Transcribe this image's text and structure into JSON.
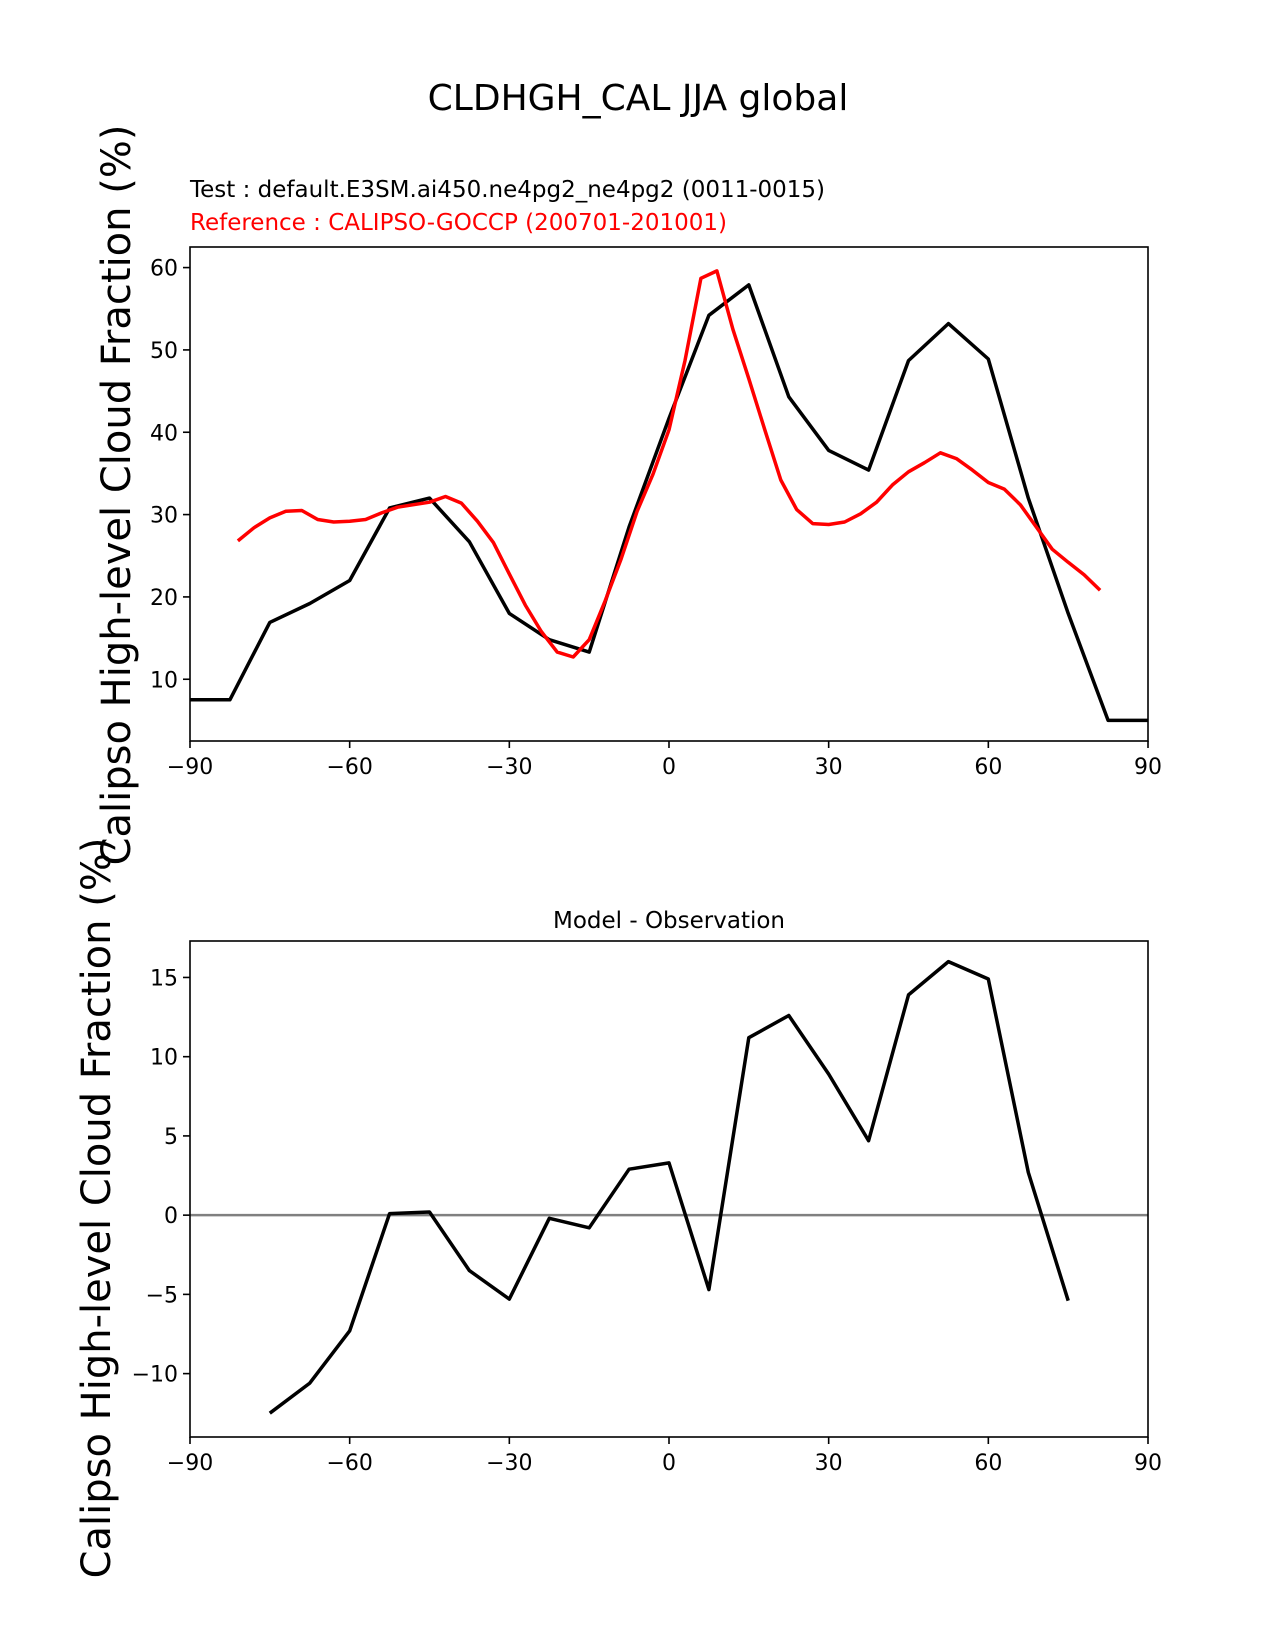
{
  "figure": {
    "title": "CLDHGH_CAL JJA global",
    "test_label": "Test : default.E3SM.ai450.ne4pg2_ne4pg2 (0011-0015)",
    "reference_label": "Reference : CALIPSO-GOCCP (200701-201001)",
    "ylabel": "Calipso High-level Cloud Fraction (%)",
    "colors": {
      "test": "#000000",
      "reference": "#ff0000",
      "zero_line": "#808080",
      "axes": "#000000"
    }
  },
  "chart_data": [
    {
      "type": "line",
      "title": "",
      "xlabel": "",
      "ylabel": "Calipso High-level Cloud Fraction (%)",
      "xlim": [
        -90,
        90
      ],
      "ylim": [
        2.5,
        62.5
      ],
      "xticks": [
        -90,
        -60,
        -30,
        0,
        30,
        60,
        90
      ],
      "yticks": [
        10,
        20,
        30,
        40,
        50,
        60
      ],
      "series": [
        {
          "name": "Test : default.E3SM.ai450.ne4pg2_ne4pg2 (0011-0015)",
          "color": "#000000",
          "x": [
            -90,
            -82.5,
            -75,
            -67.5,
            -60,
            -52.5,
            -45,
            -37.5,
            -30,
            -22.5,
            -15,
            -7.5,
            0,
            7.5,
            15,
            22.5,
            30,
            37.5,
            45,
            52.5,
            60,
            67.5,
            75,
            82.5,
            90
          ],
          "y": [
            7.5,
            7.5,
            16.9,
            19.2,
            22.0,
            30.8,
            32.0,
            26.7,
            18.0,
            14.8,
            13.3,
            28.5,
            41.7,
            54.2,
            57.9,
            44.3,
            37.8,
            35.4,
            48.7,
            53.2,
            48.9,
            32.0,
            18.0,
            5.0,
            5.0
          ]
        },
        {
          "name": "Reference : CALIPSO-GOCCP (200701-201001)",
          "color": "#ff0000",
          "x": [
            -81,
            -78,
            -75,
            -72,
            -69,
            -66,
            -63,
            -60,
            -57,
            -54,
            -51,
            -48,
            -45,
            -42,
            -39,
            -36,
            -33,
            -30,
            -27,
            -24,
            -21,
            -18,
            -15,
            -12,
            -9,
            -6,
            -3,
            0,
            3,
            6,
            9,
            12,
            15,
            18,
            21,
            24,
            27,
            30,
            33,
            36,
            39,
            42,
            45,
            48,
            51,
            54,
            57,
            60,
            63,
            66,
            69,
            72,
            75,
            78,
            81
          ],
          "y": [
            26.8,
            28.4,
            29.6,
            30.4,
            30.5,
            29.4,
            29.1,
            29.2,
            29.4,
            30.2,
            30.9,
            31.2,
            31.5,
            32.2,
            31.4,
            29.2,
            26.6,
            22.8,
            19.0,
            15.8,
            13.3,
            12.7,
            14.8,
            19.5,
            24.6,
            30.4,
            34.9,
            40.3,
            48.7,
            58.7,
            59.6,
            52.5,
            46.5,
            40.3,
            34.2,
            30.6,
            28.9,
            28.8,
            29.1,
            30.1,
            31.5,
            33.6,
            35.2,
            36.3,
            37.5,
            36.8,
            35.4,
            33.9,
            33.1,
            31.2,
            28.5,
            25.8,
            24.2,
            22.7,
            20.8
          ]
        }
      ]
    },
    {
      "type": "line",
      "title": "Model - Observation",
      "xlabel": "",
      "ylabel": "Calipso High-level Cloud Fraction (%)",
      "xlim": [
        -90,
        90
      ],
      "ylim": [
        -14,
        17.3
      ],
      "xticks": [
        -90,
        -60,
        -30,
        0,
        30,
        60,
        90
      ],
      "yticks": [
        -10,
        -5,
        0,
        5,
        10,
        15
      ],
      "zero_line": true,
      "series": [
        {
          "color": "#000000",
          "x": [
            -75,
            -67.5,
            -60,
            -52.5,
            -45,
            -37.5,
            -30,
            -22.5,
            -15,
            -7.5,
            0,
            7.5,
            15,
            22.5,
            30,
            37.5,
            45,
            52.5,
            60,
            67.5,
            75
          ],
          "y": [
            -12.5,
            -10.6,
            -7.3,
            0.1,
            0.2,
            -3.5,
            -5.3,
            -0.2,
            -0.8,
            2.9,
            3.3,
            -4.7,
            11.2,
            12.6,
            8.9,
            4.7,
            13.9,
            16.0,
            14.9,
            2.7,
            -5.4
          ]
        }
      ]
    }
  ]
}
